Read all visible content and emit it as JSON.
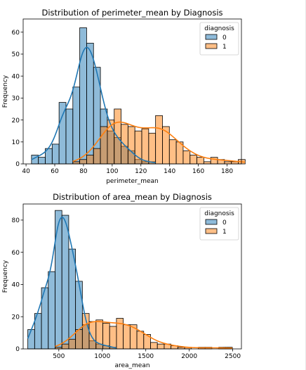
{
  "chart_data": [
    {
      "type": "histogram",
      "title": "Distribution of perimeter_mean by Diagnosis",
      "xlabel": "perimeter_mean",
      "ylabel": "Frequency",
      "xlim": [
        38,
        190
      ],
      "ylim": [
        0,
        66
      ],
      "xticks": [
        40,
        60,
        80,
        100,
        120,
        140,
        160,
        180
      ],
      "yticks": [
        0,
        10,
        20,
        30,
        40,
        50,
        60
      ],
      "legend": {
        "title": "diagnosis",
        "position": "top-right"
      },
      "bin_start": 43.8,
      "bin_width": 4.8,
      "series": [
        {
          "name": "0",
          "color": "#1f77b4",
          "kde": true,
          "values": [
            4,
            3,
            7,
            9,
            28,
            25,
            35,
            62,
            55,
            44,
            25,
            15,
            12,
            8,
            6,
            2,
            1,
            1,
            0,
            0,
            0,
            0,
            0,
            0,
            0,
            0,
            0,
            0,
            0,
            0,
            0
          ]
        },
        {
          "name": "1",
          "color": "#ff7f0e",
          "kde": true,
          "values": [
            0,
            0,
            0,
            0,
            0,
            0,
            1,
            2,
            4,
            7,
            17,
            20,
            25,
            18,
            17,
            15,
            16,
            14,
            22,
            17,
            11,
            10,
            6,
            4,
            3,
            1,
            3,
            2,
            1,
            1,
            2
          ]
        }
      ]
    },
    {
      "type": "histogram",
      "title": "Distribution of area_mean by Diagnosis",
      "xlabel": "area_mean",
      "ylabel": "Frequency",
      "xlim": [
        90,
        2600
      ],
      "ylim": [
        0,
        90
      ],
      "xticks": [
        500,
        1000,
        1500,
        2000,
        2500
      ],
      "yticks": [
        0,
        20,
        40,
        60,
        80
      ],
      "legend": {
        "title": "diagnosis",
        "position": "top-right"
      },
      "bin_start": 143.5,
      "bin_width": 78.4,
      "series": [
        {
          "name": "0",
          "color": "#1f77b4",
          "kde": true,
          "values": [
            12,
            22,
            38,
            48,
            86,
            83,
            62,
            42,
            15,
            5,
            3,
            2,
            1,
            0,
            0,
            0,
            0,
            0,
            0,
            0,
            0,
            0,
            0,
            0,
            0,
            0,
            0,
            0,
            0,
            0
          ]
        },
        {
          "name": "1",
          "color": "#ff7f0e",
          "kde": true,
          "values": [
            0,
            0,
            0,
            0,
            1,
            3,
            6,
            12,
            22,
            17,
            18,
            16,
            14,
            19,
            15,
            15,
            11,
            9,
            4,
            3,
            3,
            2,
            1,
            1,
            0,
            1,
            1,
            0,
            1,
            1
          ]
        }
      ]
    }
  ]
}
